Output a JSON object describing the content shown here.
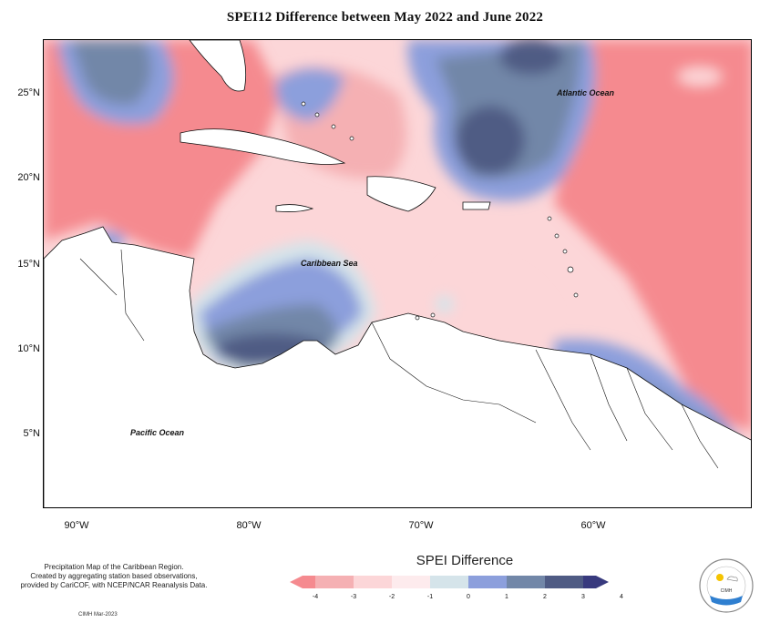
{
  "title": "SPEI12 Difference between May 2022 and June 2022",
  "map": {
    "lat_labels": [
      "25°N",
      "20°N",
      "15°N",
      "10°N",
      "5°N"
    ],
    "lon_labels": [
      "90°W",
      "80°W",
      "70°W",
      "60°W"
    ],
    "ocean_labels": {
      "atlantic": "Atlantic Ocean",
      "caribbean": "Caribbean Sea",
      "pacific": "Pacific Ocean"
    }
  },
  "legend": {
    "title": "SPEI Difference",
    "ticks": [
      "-4",
      "-3",
      "-2",
      "-1",
      "0",
      "1",
      "2",
      "3",
      "4"
    ],
    "colors": [
      "#f58a8f",
      "#f5b0b3",
      "#fcd6d8",
      "#fdebed",
      "#d5e4ea",
      "#8c9fdc",
      "#7287a8",
      "#4f5b84",
      "#383a7e"
    ]
  },
  "footnote": {
    "line1": "Precipitation Map of the Caribbean Region.",
    "line2": "Created by aggregating station based observations,",
    "line3": "provided by CariCOF, with NCEP/NCAR Reanalysis Data."
  },
  "credit": "CIMH Mar-2023",
  "logo": {
    "text": "CIMH",
    "ring_text": "CARIBBEAN INSTITUTE FOR METEOROLOGY AND HYDROLOGY"
  }
}
